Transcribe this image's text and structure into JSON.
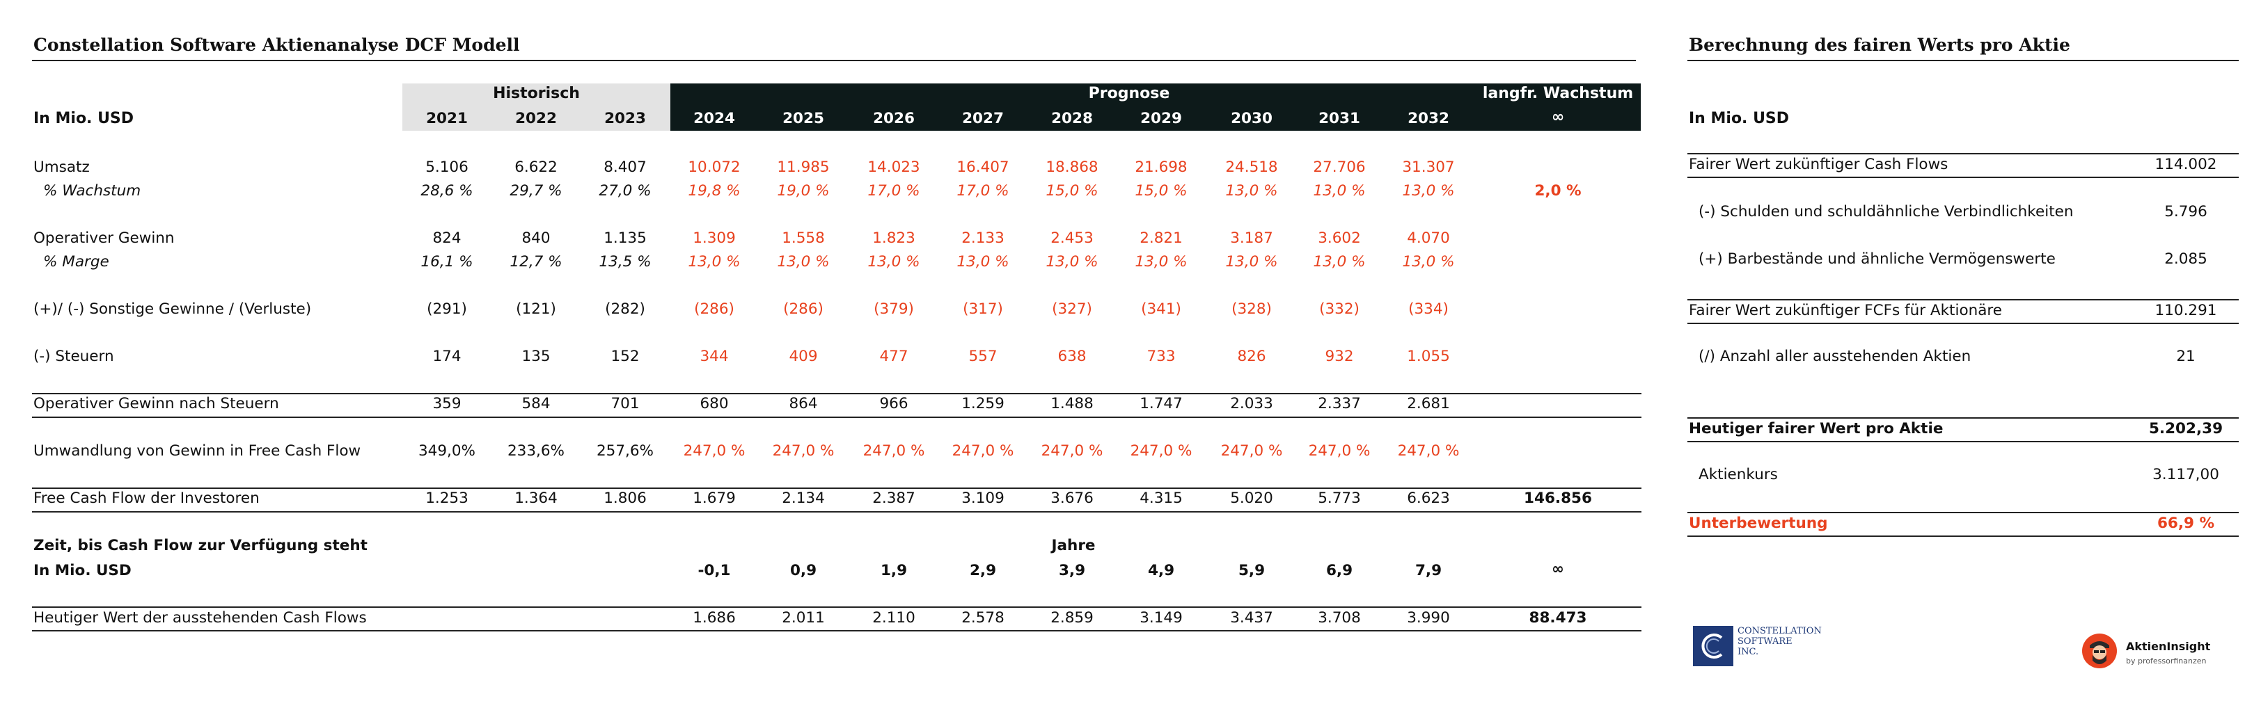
{
  "left": {
    "title": "Constellation Software Aktienanalyse DCF Modell",
    "unit_label": "In Mio. USD",
    "group_hist": "Historisch",
    "group_prog": "Prognose",
    "group_lt": "langfr. Wachstum",
    "years": [
      "2021",
      "2022",
      "2023",
      "2024",
      "2025",
      "2026",
      "2027",
      "2028",
      "2029",
      "2030",
      "2031",
      "2032"
    ],
    "lt_symbol": "∞",
    "rows": [
      {
        "label": "Umsatz",
        "values": [
          "5.106",
          "6.622",
          "8.407",
          "10.072",
          "11.985",
          "14.023",
          "16.407",
          "18.868",
          "21.698",
          "24.518",
          "27.706",
          "31.307"
        ],
        "lt": ""
      },
      {
        "label": "% Wachstum",
        "values": [
          "28,6 %",
          "29,7 %",
          "27,0 %",
          "19,8 %",
          "19,0 %",
          "17,0 %",
          "17,0 %",
          "15,0 %",
          "15,0 %",
          "13,0 %",
          "13,0 %",
          "13,0 %"
        ],
        "lt": "2,0 %"
      },
      {
        "label": "Operativer Gewinn",
        "values": [
          "824",
          "840",
          "1.135",
          "1.309",
          "1.558",
          "1.823",
          "2.133",
          "2.453",
          "2.821",
          "3.187",
          "3.602",
          "4.070"
        ],
        "lt": ""
      },
      {
        "label": "% Marge",
        "values": [
          "16,1 %",
          "12,7 %",
          "13,5 %",
          "13,0 %",
          "13,0 %",
          "13,0 %",
          "13,0 %",
          "13,0 %",
          "13,0 %",
          "13,0 %",
          "13,0 %",
          "13,0 %"
        ],
        "lt": ""
      },
      {
        "label": "(+)/ (-) Sonstige Gewinne / (Verluste)",
        "values": [
          "(291)",
          "(121)",
          "(282)",
          "(286)",
          "(286)",
          "(379)",
          "(317)",
          "(327)",
          "(341)",
          "(328)",
          "(332)",
          "(334)"
        ],
        "lt": ""
      },
      {
        "label": "(-) Steuern",
        "values": [
          "174",
          "135",
          "152",
          "344",
          "409",
          "477",
          "557",
          "638",
          "733",
          "826",
          "932",
          "1.055"
        ],
        "lt": ""
      },
      {
        "label": "Operativer Gewinn nach Steuern",
        "values": [
          "359",
          "584",
          "701",
          "680",
          "864",
          "966",
          "1.259",
          "1.488",
          "1.747",
          "2.033",
          "2.337",
          "2.681"
        ],
        "lt": ""
      },
      {
        "label": "Umwandlung von Gewinn in Free Cash Flow",
        "values": [
          "349,0%",
          "233,6%",
          "257,6%",
          "247,0 %",
          "247,0 %",
          "247,0 %",
          "247,0 %",
          "247,0 %",
          "247,0 %",
          "247,0 %",
          "247,0 %",
          "247,0 %"
        ],
        "lt": ""
      },
      {
        "label": "Free Cash Flow der Investoren",
        "values": [
          "1.253",
          "1.364",
          "1.806",
          "1.679",
          "2.134",
          "2.387",
          "3.109",
          "3.676",
          "4.315",
          "5.020",
          "5.773",
          "6.623"
        ],
        "lt": "146.856"
      }
    ],
    "time_label": "Zeit, bis Cash Flow zur Verfügung steht",
    "time_unit_label": "In Mio. USD",
    "years_word": "Jahre",
    "time_values": [
      "-0,1",
      "0,9",
      "1,9",
      "2,9",
      "3,9",
      "4,9",
      "5,9",
      "6,9",
      "7,9"
    ],
    "time_lt": "∞",
    "pv_label": "Heutiger Wert der ausstehenden Cash Flows",
    "pv_values": [
      "1.686",
      "2.011",
      "2.110",
      "2.578",
      "2.859",
      "3.149",
      "3.437",
      "3.708",
      "3.990"
    ],
    "pv_lt": "88.473"
  },
  "right": {
    "title": "Berechnung des fairen Werts pro Aktie",
    "unit_label": "In Mio. USD",
    "rows": [
      {
        "label": "Fairer Wert zukünftiger Cash Flows",
        "value": "114.002"
      },
      {
        "label": "(-) Schulden und schuldähnliche Verbindlichkeiten",
        "value": "5.796"
      },
      {
        "label": "(+) Barbestände und ähnliche Vermögenswerte",
        "value": "2.085"
      },
      {
        "label": "Fairer Wert zukünftiger FCFs für Aktionäre",
        "value": "110.291"
      },
      {
        "label": "(/) Anzahl aller ausstehenden Aktien",
        "value": "21"
      },
      {
        "label": "Heutiger fairer Wert pro Aktie",
        "value": "5.202,39"
      },
      {
        "label": "Aktienkurs",
        "value": "3.117,00"
      },
      {
        "label": "Unterbewertung",
        "value": "66,9 %"
      }
    ]
  },
  "logos": {
    "constellation_line1": "CONSTELLATION",
    "constellation_line2": "SOFTWARE",
    "constellation_line3": "INC.",
    "brand_name": "AktienInsight",
    "brand_sub": "by professorfinanzen"
  },
  "colors": {
    "forecast_red": "#e8421f",
    "header_dark": "#0d1a1a",
    "header_grey": "#e3e3e3"
  }
}
